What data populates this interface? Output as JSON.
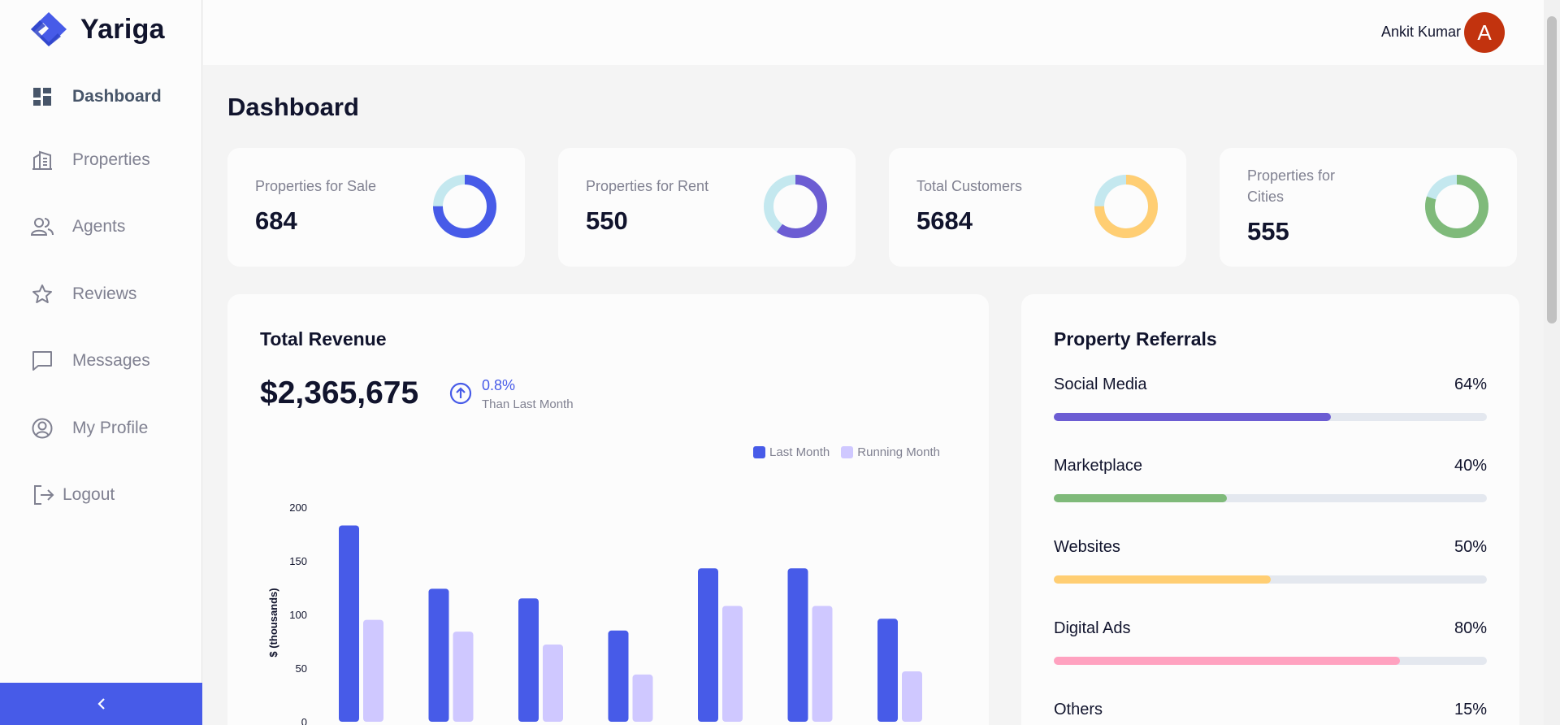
{
  "app": {
    "name": "Yariga"
  },
  "sidebar": {
    "items": [
      {
        "label": "Dashboard",
        "icon": "dashboard-icon",
        "active": true
      },
      {
        "label": "Properties",
        "icon": "building-icon"
      },
      {
        "label": "Agents",
        "icon": "people-icon"
      },
      {
        "label": "Reviews",
        "icon": "star-icon"
      },
      {
        "label": "Messages",
        "icon": "chat-icon"
      },
      {
        "label": "My Profile",
        "icon": "profile-icon"
      }
    ],
    "logout_label": "Logout",
    "collapse_icon": "chevron-left-icon"
  },
  "header": {
    "user_name": "Ankit Kumar",
    "avatar_initial": "A",
    "avatar_color": "#c2330e"
  },
  "page": {
    "title": "Dashboard"
  },
  "stats": [
    {
      "label": "Properties for Sale",
      "value": "684",
      "color": "#475be8",
      "fraction": 0.75
    },
    {
      "label": "Properties for Rent",
      "value": "550",
      "color": "#6c5dd3",
      "fraction": 0.6
    },
    {
      "label": "Total Customers",
      "value": "5684",
      "color": "#ffce73",
      "fraction": 0.75
    },
    {
      "label": "Properties for Cities",
      "value": "555",
      "color": "#7fba7a",
      "fraction": 0.8
    }
  ],
  "revenue": {
    "title": "Total Revenue",
    "value": "$2,365,675",
    "trend_pct": "0.8%",
    "trend_sub": "Than Last Month"
  },
  "chart_data": {
    "type": "bar",
    "ylabel": "$ (thousands)",
    "xlabel": "",
    "ylim": [
      0,
      200
    ],
    "yticks": [
      0,
      50,
      100,
      150,
      200
    ],
    "categories": [
      "",
      "",
      "",
      "",
      "",
      "",
      ""
    ],
    "series": [
      {
        "name": "Last Month",
        "color": "#475be8",
        "values": [
          183,
          124,
          115,
          85,
          143,
          143,
          96
        ]
      },
      {
        "name": "Running Month",
        "color": "#cfc8ff",
        "values": [
          95,
          84,
          72,
          44,
          108,
          108,
          47
        ]
      }
    ]
  },
  "referrals": {
    "title": "Property Referrals",
    "items": [
      {
        "name": "Social Media",
        "pct": "64%",
        "value": 64,
        "color": "#6c5dd3"
      },
      {
        "name": "Marketplace",
        "pct": "40%",
        "value": 40,
        "color": "#7fba7a"
      },
      {
        "name": "Websites",
        "pct": "50%",
        "value": 50,
        "color": "#ffce73"
      },
      {
        "name": "Digital Ads",
        "pct": "80%",
        "value": 80,
        "color": "#ffa2c0"
      },
      {
        "name": "Others",
        "pct": "15%",
        "value": 15,
        "color": "#f45252"
      }
    ]
  }
}
